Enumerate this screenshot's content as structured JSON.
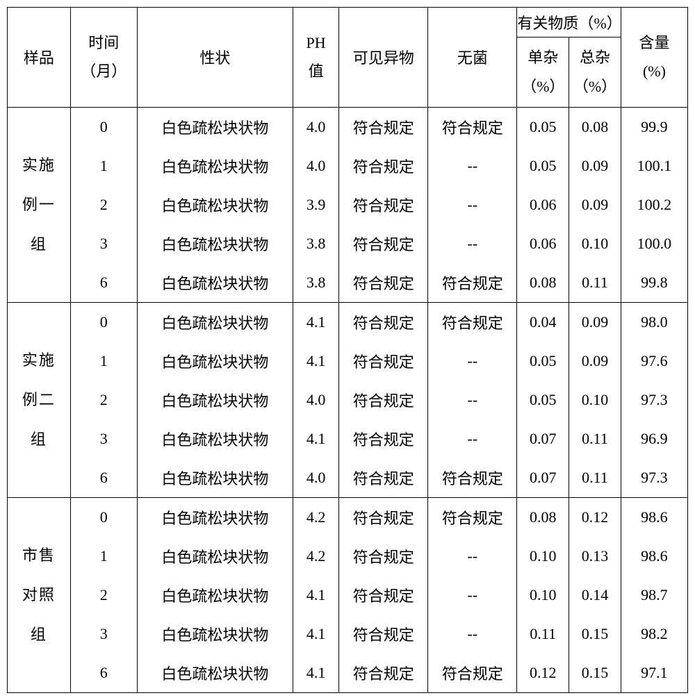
{
  "headers": {
    "sample": "样品",
    "time": "时间",
    "time_unit": "（月）",
    "appearance": "性状",
    "ph": "PH",
    "ph_sub": "值",
    "visible": "可见异物",
    "sterile": "无菌",
    "related": "有关物质（%）",
    "single_imp": "单杂",
    "single_imp_unit": "（%）",
    "total_imp": "总杂",
    "total_imp_unit": "（%）",
    "content": "含量",
    "content_unit": "(%)"
  },
  "groups": [
    {
      "name_lines": [
        "实施",
        "例一",
        "组"
      ],
      "rows": [
        {
          "time": "0",
          "appearance": "白色疏松块状物",
          "ph": "4.0",
          "visible": "符合规定",
          "sterile": "符合规定",
          "single": "0.05",
          "total": "0.08",
          "content": "99.9"
        },
        {
          "time": "1",
          "appearance": "白色疏松块状物",
          "ph": "4.0",
          "visible": "符合规定",
          "sterile": "--",
          "single": "0.05",
          "total": "0.09",
          "content": "100.1"
        },
        {
          "time": "2",
          "appearance": "白色疏松块状物",
          "ph": "3.9",
          "visible": "符合规定",
          "sterile": "--",
          "single": "0.06",
          "total": "0.09",
          "content": "100.2"
        },
        {
          "time": "3",
          "appearance": "白色疏松块状物",
          "ph": "3.8",
          "visible": "符合规定",
          "sterile": "--",
          "single": "0.06",
          "total": "0.10",
          "content": "100.0"
        },
        {
          "time": "6",
          "appearance": "白色疏松块状物",
          "ph": "3.8",
          "visible": "符合规定",
          "sterile": "符合规定",
          "single": "0.08",
          "total": "0.11",
          "content": "99.8"
        }
      ]
    },
    {
      "name_lines": [
        "实施",
        "例二",
        "组"
      ],
      "rows": [
        {
          "time": "0",
          "appearance": "白色疏松块状物",
          "ph": "4.1",
          "visible": "符合规定",
          "sterile": "符合规定",
          "single": "0.04",
          "total": "0.09",
          "content": "98.0"
        },
        {
          "time": "1",
          "appearance": "白色疏松块状物",
          "ph": "4.1",
          "visible": "符合规定",
          "sterile": "--",
          "single": "0.05",
          "total": "0.09",
          "content": "97.6"
        },
        {
          "time": "2",
          "appearance": "白色疏松块状物",
          "ph": "4.0",
          "visible": "符合规定",
          "sterile": "--",
          "single": "0.05",
          "total": "0.10",
          "content": "97.3"
        },
        {
          "time": "3",
          "appearance": "白色疏松块状物",
          "ph": "4.1",
          "visible": "符合规定",
          "sterile": "--",
          "single": "0.07",
          "total": "0.11",
          "content": "96.9"
        },
        {
          "time": "6",
          "appearance": "白色疏松块状物",
          "ph": "4.0",
          "visible": "符合规定",
          "sterile": "符合规定",
          "single": "0.07",
          "total": "0.11",
          "content": "97.3"
        }
      ]
    },
    {
      "name_lines": [
        "市售",
        "对照",
        "组"
      ],
      "rows": [
        {
          "time": "0",
          "appearance": "白色疏松块状物",
          "ph": "4.2",
          "visible": "符合规定",
          "sterile": "符合规定",
          "single": "0.08",
          "total": "0.12",
          "content": "98.6"
        },
        {
          "time": "1",
          "appearance": "白色疏松块状物",
          "ph": "4.2",
          "visible": "符合规定",
          "sterile": "--",
          "single": "0.10",
          "total": "0.13",
          "content": "98.6"
        },
        {
          "time": "2",
          "appearance": "白色疏松块状物",
          "ph": "4.1",
          "visible": "符合规定",
          "sterile": "--",
          "single": "0.10",
          "total": "0.14",
          "content": "98.7"
        },
        {
          "time": "3",
          "appearance": "白色疏松块状物",
          "ph": "4.1",
          "visible": "符合规定",
          "sterile": "--",
          "single": "0.11",
          "total": "0.15",
          "content": "98.2"
        },
        {
          "time": "6",
          "appearance": "白色疏松块状物",
          "ph": "4.1",
          "visible": "符合规定",
          "sterile": "符合规定",
          "single": "0.12",
          "total": "0.15",
          "content": "97.1"
        }
      ]
    }
  ]
}
